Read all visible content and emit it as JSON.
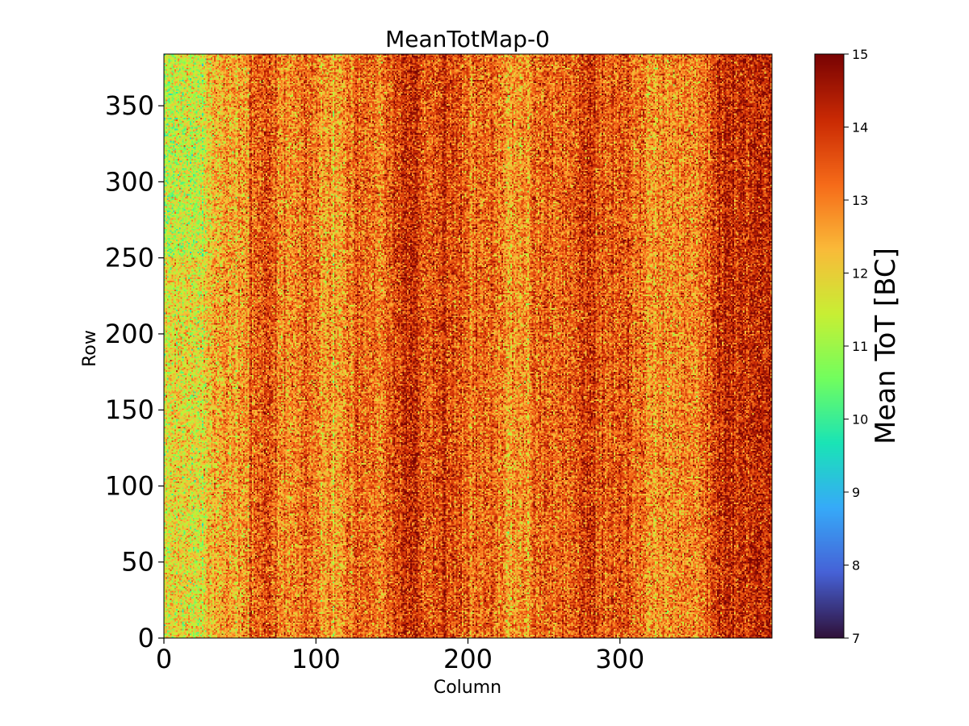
{
  "chart_data": {
    "type": "heatmap",
    "title": "MeanTotMap-0",
    "xlabel": "Column",
    "ylabel": "Row",
    "xlim": [
      0,
      400
    ],
    "ylim": [
      0,
      384
    ],
    "xticks": [
      0,
      100,
      200,
      300
    ],
    "yticks": [
      0,
      50,
      100,
      150,
      200,
      250,
      300,
      350
    ],
    "colorbar": {
      "label": "Mean ToT [BC]",
      "range": [
        7,
        15
      ],
      "ticks": [
        7,
        8,
        9,
        10,
        11,
        12,
        13,
        14,
        15
      ],
      "colormap": "turbo"
    },
    "grid": false,
    "value_summary": {
      "typical_range": [
        10,
        15
      ],
      "left_edge_mean": 11.6,
      "right_edge_mean": 14.2,
      "overall_mean": 13.4,
      "column_profile": [
        {
          "column": 0,
          "mean_tot": 11.6
        },
        {
          "column": 40,
          "mean_tot": 12.3
        },
        {
          "column": 60,
          "mean_tot": 13.4
        },
        {
          "column": 110,
          "mean_tot": 12.8
        },
        {
          "column": 165,
          "mean_tot": 13.9
        },
        {
          "column": 230,
          "mean_tot": 12.9
        },
        {
          "column": 285,
          "mean_tot": 13.8
        },
        {
          "column": 335,
          "mean_tot": 12.7
        },
        {
          "column": 380,
          "mean_tot": 14.3
        },
        {
          "column": 400,
          "mean_tot": 14.0
        }
      ]
    }
  },
  "colors": {
    "colormap_stops": [
      "#30123b",
      "#4662d7",
      "#36aaf9",
      "#1ae4b6",
      "#72fe5e",
      "#c8ef34",
      "#faba39",
      "#f66b19",
      "#ca2a04",
      "#7a0403"
    ]
  }
}
